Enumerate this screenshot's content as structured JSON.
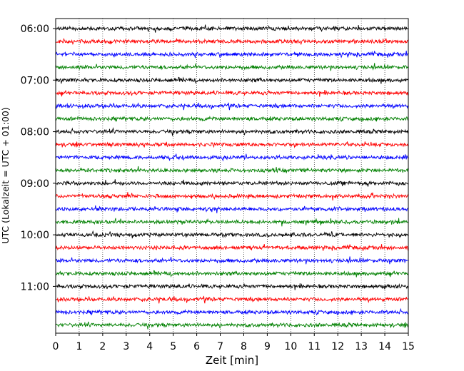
{
  "chart_data": {
    "type": "line",
    "subtype": "seismic-helicorder",
    "xlabel": "Zeit  [min]",
    "ylabel": "UTC (Lokalzeit = UTC + 01:00)",
    "xlim": [
      0,
      15
    ],
    "x_ticks": [
      "0",
      "1",
      "2",
      "3",
      "4",
      "5",
      "6",
      "7",
      "8",
      "9",
      "10",
      "11",
      "12",
      "13",
      "14",
      "15"
    ],
    "y_tick_labels": [
      "06:00",
      "07:00",
      "08:00",
      "09:00",
      "10:00",
      "11:00"
    ],
    "trace_interval_minutes": 15,
    "start_time": "06:00",
    "end_time": "12:00",
    "grid": "vertical dotted lines at each minute",
    "color_cycle": [
      "#000000",
      "#ff0000",
      "#0000ff",
      "#008000"
    ],
    "traces": [
      {
        "start": "06:00",
        "color": "#000000"
      },
      {
        "start": "06:15",
        "color": "#ff0000"
      },
      {
        "start": "06:30",
        "color": "#0000ff"
      },
      {
        "start": "06:45",
        "color": "#008000"
      },
      {
        "start": "07:00",
        "color": "#000000"
      },
      {
        "start": "07:15",
        "color": "#ff0000"
      },
      {
        "start": "07:30",
        "color": "#0000ff"
      },
      {
        "start": "07:45",
        "color": "#008000"
      },
      {
        "start": "08:00",
        "color": "#000000"
      },
      {
        "start": "08:15",
        "color": "#ff0000"
      },
      {
        "start": "08:30",
        "color": "#0000ff"
      },
      {
        "start": "08:45",
        "color": "#008000"
      },
      {
        "start": "09:00",
        "color": "#000000"
      },
      {
        "start": "09:15",
        "color": "#ff0000"
      },
      {
        "start": "09:30",
        "color": "#0000ff"
      },
      {
        "start": "09:45",
        "color": "#008000"
      },
      {
        "start": "10:00",
        "color": "#000000"
      },
      {
        "start": "10:15",
        "color": "#ff0000"
      },
      {
        "start": "10:30",
        "color": "#0000ff"
      },
      {
        "start": "10:45",
        "color": "#008000"
      },
      {
        "start": "11:00",
        "color": "#000000"
      },
      {
        "start": "11:15",
        "color": "#ff0000"
      },
      {
        "start": "11:30",
        "color": "#0000ff"
      },
      {
        "start": "11:45",
        "color": "#008000"
      }
    ]
  }
}
